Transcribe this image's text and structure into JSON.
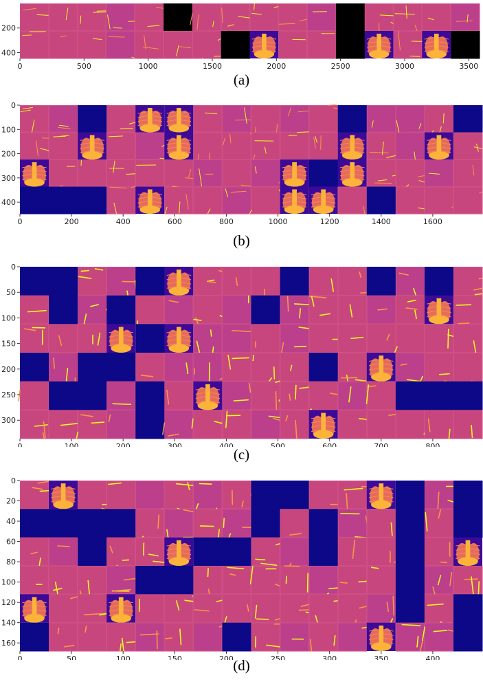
{
  "figure": {
    "colors": {
      "background_tile": "#c8467e",
      "alt_tile": "#bb3f8a",
      "blank_dark": "#0d0887",
      "blank_black": "#000000",
      "edge_yellow": "#f0f921",
      "xray_light": "#fcb33a",
      "xray_mid": "#e56b5d",
      "xray_dark": "#3d0a98"
    },
    "colormap": "plasma",
    "panels": [
      {
        "label": "(a)",
        "grid": {
          "rows": 2,
          "cols": 16
        },
        "blank_color": "blank_black",
        "blank_tiles": [
          [
            0,
            5
          ],
          [
            0,
            11
          ],
          [
            1,
            7
          ],
          [
            1,
            11
          ],
          [
            1,
            15
          ]
        ],
        "xray_tiles": [
          [
            1,
            8
          ],
          [
            1,
            12
          ],
          [
            1,
            14
          ]
        ],
        "xaxis": {
          "ticks": [
            0,
            500,
            1000,
            1500,
            2000,
            2500,
            3000,
            3500
          ],
          "limit": 3584
        },
        "yaxis": {
          "ticks": [
            200,
            400
          ],
          "limit": 448
        }
      },
      {
        "label": "(b)",
        "grid": {
          "rows": 4,
          "cols": 16
        },
        "blank_color": "blank_dark",
        "blank_tiles": [
          [
            0,
            2
          ],
          [
            0,
            11
          ],
          [
            0,
            15
          ],
          [
            2,
            10
          ],
          [
            3,
            0
          ],
          [
            3,
            1
          ],
          [
            3,
            2
          ],
          [
            3,
            12
          ]
        ],
        "xray_tiles": [
          [
            0,
            4
          ],
          [
            0,
            5
          ],
          [
            1,
            2
          ],
          [
            1,
            5
          ],
          [
            1,
            11
          ],
          [
            1,
            14
          ],
          [
            2,
            0
          ],
          [
            2,
            9
          ],
          [
            2,
            11
          ],
          [
            3,
            4
          ],
          [
            3,
            9
          ],
          [
            3,
            10
          ]
        ],
        "xaxis": {
          "ticks": [
            0,
            200,
            400,
            600,
            800,
            1000,
            1200,
            1400,
            1600
          ],
          "limit": 1792
        },
        "yaxis": {
          "ticks": [
            0,
            100,
            200,
            300,
            400
          ],
          "limit": 448
        }
      },
      {
        "label": "(c)",
        "grid": {
          "rows": 6,
          "cols": 16
        },
        "blank_color": "blank_dark",
        "blank_tiles": [
          [
            0,
            0
          ],
          [
            0,
            1
          ],
          [
            0,
            4
          ],
          [
            0,
            9
          ],
          [
            0,
            12
          ],
          [
            0,
            14
          ],
          [
            1,
            1
          ],
          [
            1,
            3
          ],
          [
            1,
            8
          ],
          [
            2,
            4
          ],
          [
            3,
            0
          ],
          [
            3,
            2
          ],
          [
            3,
            3
          ],
          [
            3,
            10
          ],
          [
            4,
            1
          ],
          [
            4,
            2
          ],
          [
            4,
            4
          ],
          [
            4,
            13
          ],
          [
            4,
            14
          ],
          [
            4,
            15
          ],
          [
            5,
            4
          ]
        ],
        "xray_tiles": [
          [
            0,
            5
          ],
          [
            1,
            14
          ],
          [
            2,
            3
          ],
          [
            2,
            5
          ],
          [
            3,
            12
          ],
          [
            4,
            6
          ],
          [
            5,
            10
          ]
        ],
        "xaxis": {
          "ticks": [
            0,
            100,
            200,
            300,
            400,
            500,
            600,
            700,
            800
          ],
          "limit": 896
        },
        "yaxis": {
          "ticks": [
            0,
            50,
            100,
            150,
            200,
            250,
            300
          ],
          "limit": 336
        }
      },
      {
        "label": "(d)",
        "grid": {
          "rows": 6,
          "cols": 16
        },
        "blank_color": "blank_dark",
        "blank_tiles": [
          [
            0,
            8
          ],
          [
            0,
            9
          ],
          [
            0,
            13
          ],
          [
            0,
            15
          ],
          [
            1,
            0
          ],
          [
            1,
            1
          ],
          [
            1,
            2
          ],
          [
            1,
            3
          ],
          [
            1,
            8
          ],
          [
            1,
            10
          ],
          [
            1,
            13
          ],
          [
            1,
            15
          ],
          [
            2,
            2
          ],
          [
            2,
            6
          ],
          [
            2,
            7
          ],
          [
            2,
            10
          ],
          [
            2,
            13
          ],
          [
            3,
            4
          ],
          [
            3,
            5
          ],
          [
            3,
            13
          ],
          [
            4,
            13
          ],
          [
            4,
            15
          ],
          [
            5,
            0
          ],
          [
            5,
            7
          ],
          [
            5,
            15
          ]
        ],
        "xray_tiles": [
          [
            0,
            1
          ],
          [
            0,
            12
          ],
          [
            2,
            5
          ],
          [
            2,
            15
          ],
          [
            4,
            0
          ],
          [
            4,
            3
          ],
          [
            5,
            12
          ]
        ],
        "xaxis": {
          "ticks": [
            0,
            50,
            100,
            150,
            200,
            250,
            300,
            350,
            400
          ],
          "limit": 448
        },
        "yaxis": {
          "ticks": [
            0,
            20,
            40,
            60,
            80,
            100,
            120,
            140,
            160
          ],
          "limit": 168
        }
      }
    ]
  }
}
